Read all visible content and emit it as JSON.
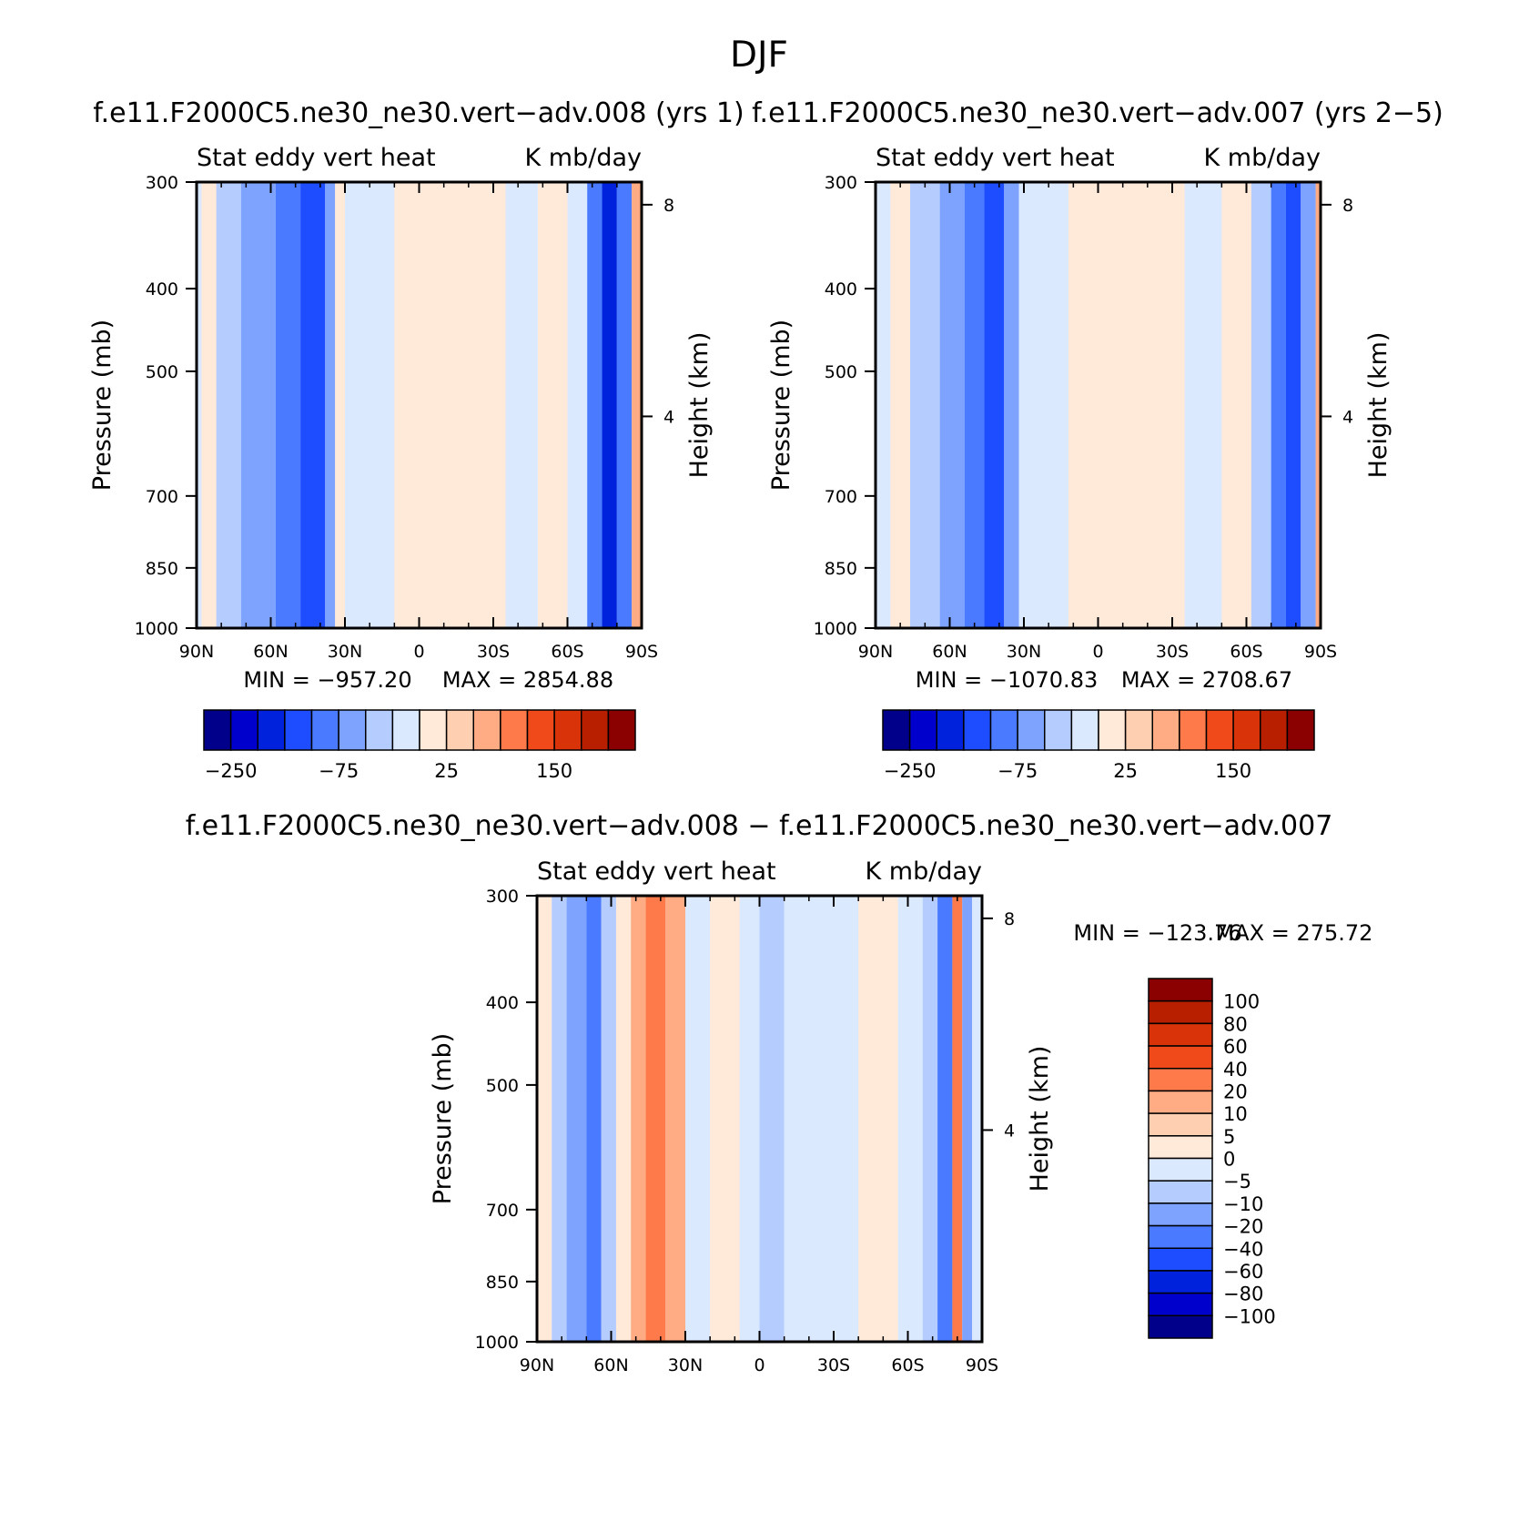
{
  "page_title": "DJF",
  "palette": {
    "levels_colors": [
      "#00008b",
      "#0000cc",
      "#0022dd",
      "#1e4dff",
      "#4a7aff",
      "#7ea3ff",
      "#b5ccff",
      "#dbe9ff",
      "#ffe9d8",
      "#ffcfb2",
      "#ffab84",
      "#ff7a4a",
      "#f04a1a",
      "#d9330a",
      "#b81f00",
      "#8b0000"
    ]
  },
  "chart_data": [
    {
      "type": "heatmap",
      "title": "f.e11.F2000C5.ne30_ne30.vert−adv.008 (yrs 1)",
      "left_label": "Stat eddy vert heat",
      "right_label": "K mb/day",
      "ylabel": "Pressure (mb)",
      "y2label": "Height (km)",
      "xlabel": "",
      "x_ticks": [
        "90N",
        "60N",
        "30N",
        "0",
        "30S",
        "60S",
        "90S"
      ],
      "x_range": [
        90,
        -90
      ],
      "y_ticks": [
        300,
        400,
        500,
        700,
        850,
        1000
      ],
      "y_range": [
        1000,
        300
      ],
      "y2_ticks": [
        8,
        4
      ],
      "min_label": "MIN = −957.20",
      "max_label": "MAX = 2854.88",
      "colorbar_labels": [
        "−250",
        "−75",
        "25",
        "150"
      ],
      "zones": [
        {
          "lat": [
            88,
            82
          ],
          "level": 8
        },
        {
          "lat": [
            82,
            72
          ],
          "level": 6
        },
        {
          "lat": [
            72,
            58
          ],
          "level": 5
        },
        {
          "lat": [
            58,
            48
          ],
          "level": 4
        },
        {
          "lat": [
            48,
            38
          ],
          "level": 3
        },
        {
          "lat": [
            38,
            34
          ],
          "level": 5
        },
        {
          "lat": [
            34,
            30
          ],
          "level": 8
        },
        {
          "lat": [
            30,
            10
          ],
          "level": 7
        },
        {
          "lat": [
            10,
            -35
          ],
          "level": 8
        },
        {
          "lat": [
            -35,
            -48
          ],
          "level": 7
        },
        {
          "lat": [
            -48,
            -60
          ],
          "level": 8
        },
        {
          "lat": [
            -60,
            -68
          ],
          "level": 7
        },
        {
          "lat": [
            -68,
            -74
          ],
          "level": 4
        },
        {
          "lat": [
            -74,
            -80
          ],
          "level": 2
        },
        {
          "lat": [
            -80,
            -86
          ],
          "level": 4
        },
        {
          "lat": [
            -86,
            -90
          ],
          "level": 10
        }
      ]
    },
    {
      "type": "heatmap",
      "title": "f.e11.F2000C5.ne30_ne30.vert−adv.007 (yrs 2−5)",
      "left_label": "Stat eddy vert heat",
      "right_label": "K mb/day",
      "ylabel": "Pressure (mb)",
      "y2label": "Height (km)",
      "xlabel": "",
      "x_ticks": [
        "90N",
        "60N",
        "30N",
        "0",
        "30S",
        "60S",
        "90S"
      ],
      "x_range": [
        90,
        -90
      ],
      "y_ticks": [
        300,
        400,
        500,
        700,
        850,
        1000
      ],
      "y_range": [
        1000,
        300
      ],
      "y2_ticks": [
        8,
        4
      ],
      "min_label": "MIN = −1070.83",
      "max_label": "MAX = 2708.67",
      "colorbar_labels": [
        "−250",
        "−75",
        "25",
        "150"
      ],
      "zones": [
        {
          "lat": [
            90,
            84
          ],
          "level": 7
        },
        {
          "lat": [
            84,
            76
          ],
          "level": 8
        },
        {
          "lat": [
            76,
            64
          ],
          "level": 6
        },
        {
          "lat": [
            64,
            54
          ],
          "level": 5
        },
        {
          "lat": [
            54,
            46
          ],
          "level": 4
        },
        {
          "lat": [
            46,
            38
          ],
          "level": 3
        },
        {
          "lat": [
            38,
            32
          ],
          "level": 5
        },
        {
          "lat": [
            32,
            12
          ],
          "level": 7
        },
        {
          "lat": [
            12,
            -35
          ],
          "level": 8
        },
        {
          "lat": [
            -35,
            -50
          ],
          "level": 7
        },
        {
          "lat": [
            -50,
            -62
          ],
          "level": 8
        },
        {
          "lat": [
            -62,
            -70
          ],
          "level": 6
        },
        {
          "lat": [
            -70,
            -76
          ],
          "level": 4
        },
        {
          "lat": [
            -76,
            -82
          ],
          "level": 3
        },
        {
          "lat": [
            -82,
            -88
          ],
          "level": 5
        },
        {
          "lat": [
            -88,
            -90
          ],
          "level": 10
        }
      ]
    },
    {
      "type": "heatmap",
      "title": "f.e11.F2000C5.ne30_ne30.vert−adv.008 − f.e11.F2000C5.ne30_ne30.vert−adv.007",
      "left_label": "Stat eddy vert heat",
      "right_label": "K mb/day",
      "ylabel": "Pressure (mb)",
      "y2label": "Height (km)",
      "xlabel": "",
      "x_ticks": [
        "90N",
        "60N",
        "30N",
        "0",
        "30S",
        "60S",
        "90S"
      ],
      "x_range": [
        90,
        -90
      ],
      "y_ticks": [
        300,
        400,
        500,
        700,
        850,
        1000
      ],
      "y_range": [
        1000,
        300
      ],
      "y2_ticks": [
        8,
        4
      ],
      "min_label": "MIN = −123.76",
      "max_label": "MAX = 275.72",
      "colorbar_labels": [
        "100",
        "80",
        "60",
        "40",
        "20",
        "10",
        "5",
        "0",
        "−5",
        "−10",
        "−20",
        "−40",
        "−60",
        "−80",
        "−100"
      ],
      "zones": [
        {
          "lat": [
            90,
            84
          ],
          "level": 8
        },
        {
          "lat": [
            84,
            78
          ],
          "level": 6
        },
        {
          "lat": [
            78,
            70
          ],
          "level": 5
        },
        {
          "lat": [
            70,
            64
          ],
          "level": 4
        },
        {
          "lat": [
            64,
            58
          ],
          "level": 6
        },
        {
          "lat": [
            58,
            52
          ],
          "level": 8
        },
        {
          "lat": [
            52,
            46
          ],
          "level": 10
        },
        {
          "lat": [
            46,
            38
          ],
          "level": 11
        },
        {
          "lat": [
            38,
            30
          ],
          "level": 10
        },
        {
          "lat": [
            30,
            20
          ],
          "level": 7
        },
        {
          "lat": [
            20,
            8
          ],
          "level": 8
        },
        {
          "lat": [
            8,
            0
          ],
          "level": 7
        },
        {
          "lat": [
            0,
            -10
          ],
          "level": 6
        },
        {
          "lat": [
            -10,
            -40
          ],
          "level": 7
        },
        {
          "lat": [
            -40,
            -56
          ],
          "level": 8
        },
        {
          "lat": [
            -56,
            -66
          ],
          "level": 7
        },
        {
          "lat": [
            -66,
            -72
          ],
          "level": 6
        },
        {
          "lat": [
            -72,
            -78
          ],
          "level": 4
        },
        {
          "lat": [
            -78,
            -82
          ],
          "level": 11
        },
        {
          "lat": [
            -82,
            -86
          ],
          "level": 5
        },
        {
          "lat": [
            -86,
            -90
          ],
          "level": 7
        }
      ]
    }
  ]
}
